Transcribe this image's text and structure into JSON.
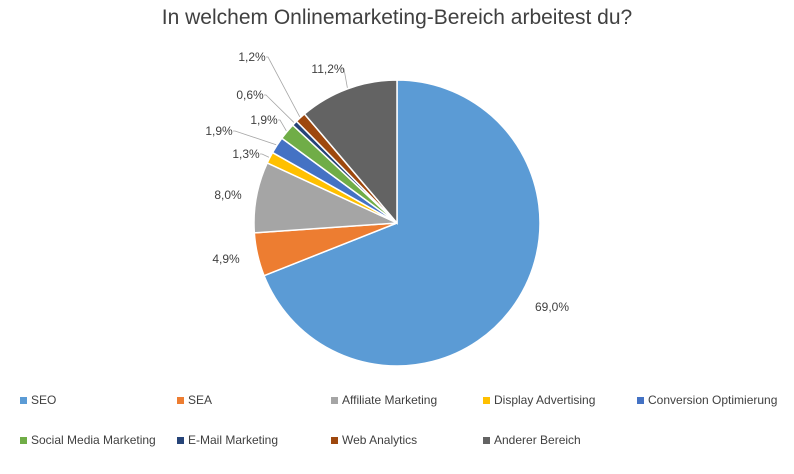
{
  "chart_data": {
    "type": "pie",
    "title": "In welchem Onlinemarketing-Bereich arbeitest du?",
    "categories": [
      "SEO",
      "SEA",
      "Affiliate Marketing",
      "Display Advertising",
      "Conversion Optimierung",
      "Social Media Marketing",
      "E-Mail Marketing",
      "Web Analytics",
      "Anderer Bereich"
    ],
    "values": [
      69.0,
      4.9,
      8.0,
      1.3,
      1.9,
      1.9,
      0.6,
      1.2,
      11.2
    ],
    "labels": [
      "69,0%",
      "4,9%",
      "8,0%",
      "1,3%",
      "1,9%",
      "1,9%",
      "0,6%",
      "1,2%",
      "11,2%"
    ],
    "colors": [
      "#5b9bd5",
      "#ed7d31",
      "#a5a5a5",
      "#ffc000",
      "#4472c4",
      "#70ad47",
      "#264478",
      "#9e480e",
      "#636363"
    ],
    "legend_position": "bottom"
  }
}
